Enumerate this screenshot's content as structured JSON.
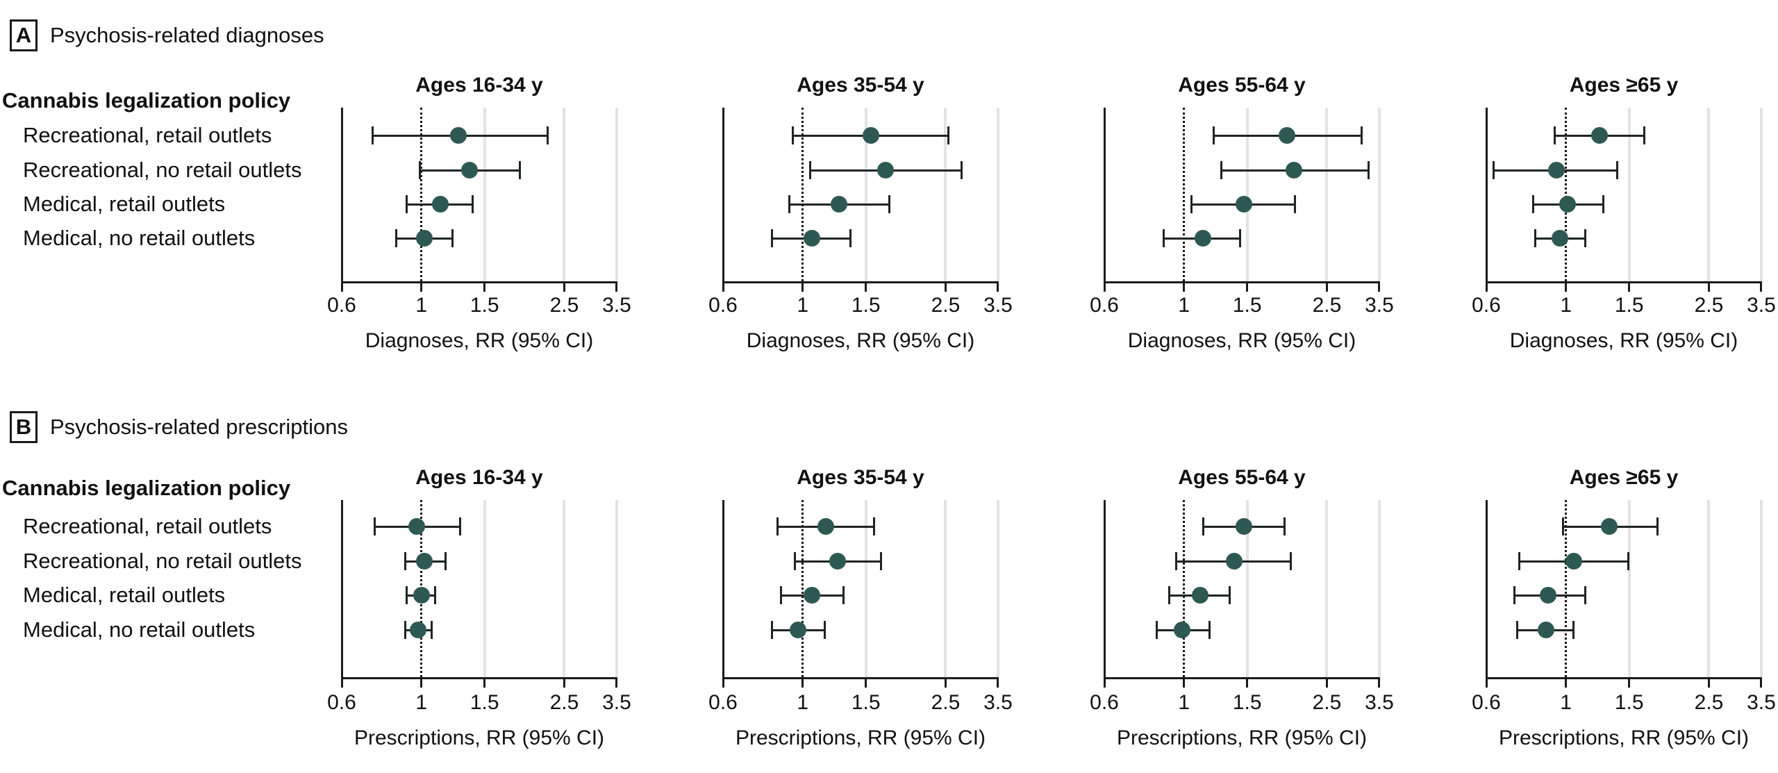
{
  "chart_data": {
    "type": "forest",
    "x_axis": {
      "scale": "log",
      "range": [
        0.6,
        3.5
      ],
      "ticks": [
        0.6,
        1,
        1.5,
        2.5,
        3.5
      ],
      "tick_labels": [
        "0.6",
        "1",
        "1.5",
        "2.5",
        "3.5"
      ],
      "reference_line": 1,
      "gridlines": [
        1.5,
        2.5,
        3.5
      ]
    },
    "row_label_header": "Cannabis legalization policy",
    "row_labels": [
      "Recreational, retail outlets",
      "Recreational, no retail outlets",
      "Medical, retail outlets",
      "Medical, no retail outlets"
    ],
    "age_group_titles": [
      "Ages 16-34 y",
      "Ages 35-54 y",
      "Ages 55-64 y",
      "Ages ≥65 y"
    ],
    "colors": {
      "point": "#2E5953",
      "error_bar": "#1e2323",
      "axis": "#1a1a1a",
      "gridline": "#E3E3E3",
      "reference_line": "#111111"
    },
    "panels": [
      {
        "label": "A",
        "title": "Psychosis-related diagnoses",
        "xlabel": "Diagnoses, RR (95% CI)",
        "plots": [
          {
            "age_group": "Ages 16-34 y",
            "estimates": [
              {
                "policy": "Recreational, retail outlets",
                "rr": 1.27,
                "ci_low": 0.73,
                "ci_high": 2.25
              },
              {
                "policy": "Recreational, no retail outlets",
                "rr": 1.36,
                "ci_low": 0.99,
                "ci_high": 1.88
              },
              {
                "policy": "Medical, retail outlets",
                "rr": 1.13,
                "ci_low": 0.91,
                "ci_high": 1.39
              },
              {
                "policy": "Medical, no retail outlets",
                "rr": 1.02,
                "ci_low": 0.85,
                "ci_high": 1.22
              }
            ]
          },
          {
            "age_group": "Ages 35-54 y",
            "estimates": [
              {
                "policy": "Recreational, retail outlets",
                "rr": 1.55,
                "ci_low": 0.94,
                "ci_high": 2.55
              },
              {
                "policy": "Recreational, no retail outlets",
                "rr": 1.7,
                "ci_low": 1.05,
                "ci_high": 2.77
              },
              {
                "policy": "Medical, retail outlets",
                "rr": 1.26,
                "ci_low": 0.92,
                "ci_high": 1.74
              },
              {
                "policy": "Medical, no retail outlets",
                "rr": 1.06,
                "ci_low": 0.82,
                "ci_high": 1.36
              }
            ]
          },
          {
            "age_group": "Ages 55-64 y",
            "estimates": [
              {
                "policy": "Recreational, retail outlets",
                "rr": 1.94,
                "ci_low": 1.21,
                "ci_high": 3.12
              },
              {
                "policy": "Recreational, no retail outlets",
                "rr": 2.02,
                "ci_low": 1.27,
                "ci_high": 3.27
              },
              {
                "policy": "Medical, retail outlets",
                "rr": 1.47,
                "ci_low": 1.05,
                "ci_high": 2.04
              },
              {
                "policy": "Medical, no retail outlets",
                "rr": 1.13,
                "ci_low": 0.88,
                "ci_high": 1.43
              }
            ]
          },
          {
            "age_group": "Ages ≥65 y",
            "estimates": [
              {
                "policy": "Recreational, retail outlets",
                "rr": 1.24,
                "ci_low": 0.93,
                "ci_high": 1.65
              },
              {
                "policy": "Recreational, no retail outlets",
                "rr": 0.94,
                "ci_low": 0.63,
                "ci_high": 1.39
              },
              {
                "policy": "Medical, retail outlets",
                "rr": 1.01,
                "ci_low": 0.81,
                "ci_high": 1.27
              },
              {
                "policy": "Medical, no retail outlets",
                "rr": 0.96,
                "ci_low": 0.82,
                "ci_high": 1.13
              }
            ]
          }
        ]
      },
      {
        "label": "B",
        "title": "Psychosis-related prescriptions",
        "xlabel": "Prescriptions, RR (95% CI)",
        "plots": [
          {
            "age_group": "Ages 16-34 y",
            "estimates": [
              {
                "policy": "Recreational, retail outlets",
                "rr": 0.97,
                "ci_low": 0.74,
                "ci_high": 1.28
              },
              {
                "policy": "Recreational, no retail outlets",
                "rr": 1.02,
                "ci_low": 0.9,
                "ci_high": 1.17
              },
              {
                "policy": "Medical, retail outlets",
                "rr": 1.0,
                "ci_low": 0.91,
                "ci_high": 1.09
              },
              {
                "policy": "Medical, no retail outlets",
                "rr": 0.98,
                "ci_low": 0.9,
                "ci_high": 1.07
              }
            ]
          },
          {
            "age_group": "Ages 35-54 y",
            "estimates": [
              {
                "policy": "Recreational, retail outlets",
                "rr": 1.16,
                "ci_low": 0.85,
                "ci_high": 1.58
              },
              {
                "policy": "Recreational, no retail outlets",
                "rr": 1.25,
                "ci_low": 0.95,
                "ci_high": 1.65
              },
              {
                "policy": "Medical, retail outlets",
                "rr": 1.06,
                "ci_low": 0.87,
                "ci_high": 1.3
              },
              {
                "policy": "Medical, no retail outlets",
                "rr": 0.97,
                "ci_low": 0.82,
                "ci_high": 1.15
              }
            ]
          },
          {
            "age_group": "Ages 55-64 y",
            "estimates": [
              {
                "policy": "Recreational, retail outlets",
                "rr": 1.47,
                "ci_low": 1.13,
                "ci_high": 1.91
              },
              {
                "policy": "Recreational, no retail outlets",
                "rr": 1.38,
                "ci_low": 0.95,
                "ci_high": 1.98
              },
              {
                "policy": "Medical, retail outlets",
                "rr": 1.11,
                "ci_low": 0.91,
                "ci_high": 1.34
              },
              {
                "policy": "Medical, no retail outlets",
                "rr": 0.99,
                "ci_low": 0.84,
                "ci_high": 1.18
              }
            ]
          },
          {
            "age_group": "Ages ≥65 y",
            "estimates": [
              {
                "policy": "Recreational, retail outlets",
                "rr": 1.32,
                "ci_low": 0.98,
                "ci_high": 1.8
              },
              {
                "policy": "Recreational, no retail outlets",
                "rr": 1.05,
                "ci_low": 0.74,
                "ci_high": 1.49
              },
              {
                "policy": "Medical, retail outlets",
                "rr": 0.89,
                "ci_low": 0.72,
                "ci_high": 1.13
              },
              {
                "policy": "Medical, no retail outlets",
                "rr": 0.88,
                "ci_low": 0.73,
                "ci_high": 1.05
              }
            ]
          }
        ]
      }
    ]
  }
}
